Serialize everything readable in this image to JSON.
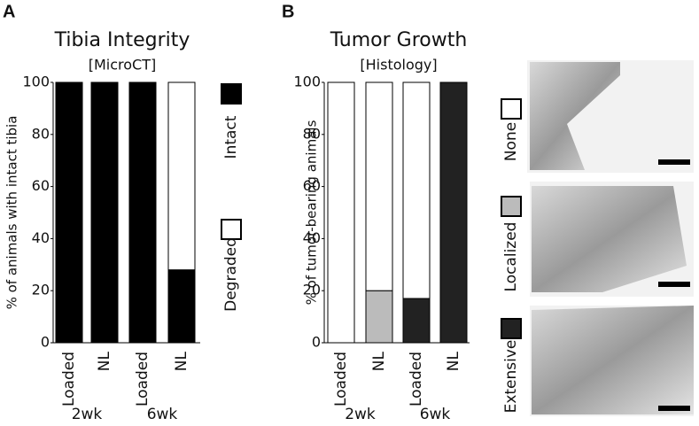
{
  "chart_data": [
    {
      "type": "bar",
      "stacked": true,
      "panel": "A",
      "title": "Tibia Integrity",
      "subtitle": "[MicroCT]",
      "ylabel": "% of animals with intact tibia",
      "categories": [
        "Loaded",
        "NL",
        "Loaded",
        "NL"
      ],
      "groups": [
        "2wk",
        "6wk"
      ],
      "series": [
        {
          "name": "Intact",
          "color": "#000000",
          "values": [
            100,
            100,
            100,
            28
          ]
        },
        {
          "name": "Degraded",
          "color": "#ffffff",
          "values": [
            0,
            0,
            0,
            72
          ]
        }
      ],
      "ylim": [
        0,
        100
      ],
      "yticks": [
        0,
        20,
        40,
        60,
        80,
        100
      ]
    },
    {
      "type": "bar",
      "stacked": true,
      "panel": "B",
      "title": "Tumor Growth",
      "subtitle": "[Histology]",
      "ylabel": "% of tumor-bearing animals",
      "categories": [
        "Loaded",
        "NL",
        "Loaded",
        "NL"
      ],
      "groups": [
        "2wk",
        "6wk"
      ],
      "series": [
        {
          "name": "Extensive",
          "color": "#222222",
          "values": [
            0,
            0,
            17,
            100
          ]
        },
        {
          "name": "Localized",
          "color": "#bbbbbb",
          "values": [
            0,
            20,
            0,
            0
          ]
        },
        {
          "name": "None",
          "color": "#ffffff",
          "values": [
            100,
            80,
            83,
            0
          ]
        }
      ],
      "ylim": [
        0,
        100
      ],
      "yticks": [
        0,
        20,
        40,
        60,
        80,
        100
      ]
    }
  ]
}
